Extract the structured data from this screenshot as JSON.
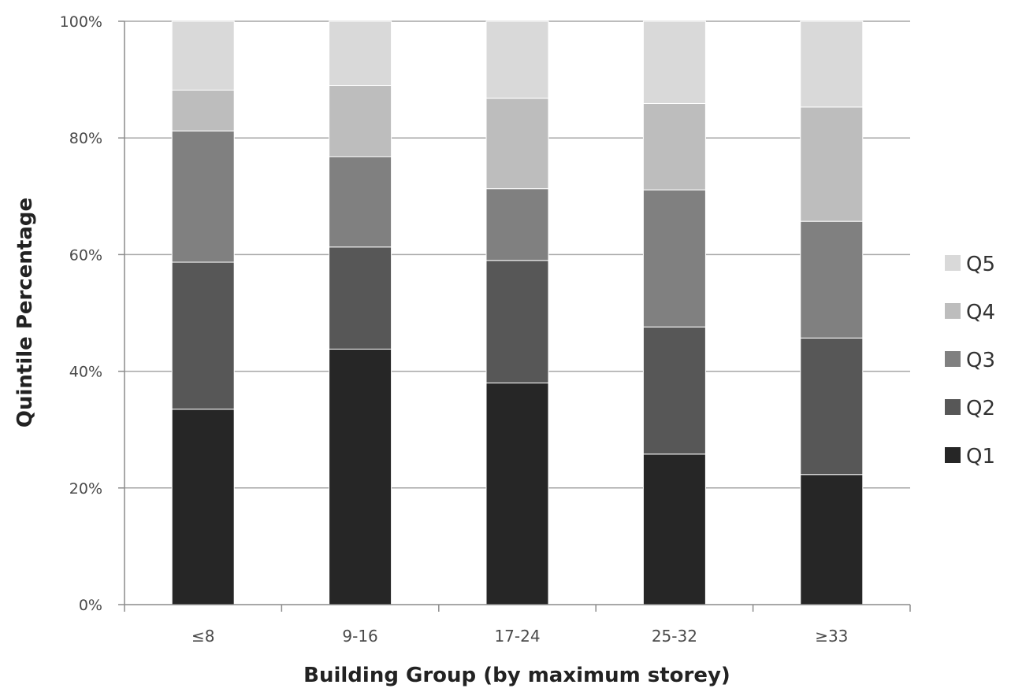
{
  "chart_data": {
    "type": "bar",
    "stacked": true,
    "categories": [
      "≤8",
      "9-16",
      "17-24",
      "25-32",
      "≥33"
    ],
    "series": [
      {
        "name": "Q1",
        "color": "#262626",
        "values": [
          33.5,
          43.8,
          38.0,
          25.8,
          22.3
        ]
      },
      {
        "name": "Q2",
        "color": "#575757",
        "values": [
          25.2,
          17.5,
          21.0,
          21.8,
          23.4
        ]
      },
      {
        "name": "Q3",
        "color": "#808080",
        "values": [
          22.5,
          15.5,
          12.3,
          23.5,
          20.0
        ]
      },
      {
        "name": "Q4",
        "color": "#bdbdbd",
        "values": [
          7.0,
          12.2,
          15.5,
          14.8,
          19.6
        ]
      },
      {
        "name": "Q5",
        "color": "#d9d9d9",
        "values": [
          11.8,
          11.0,
          13.2,
          14.1,
          14.7
        ]
      }
    ],
    "ylim": [
      0,
      100
    ],
    "yticks": [
      "0%",
      "20%",
      "40%",
      "60%",
      "80%",
      "100%"
    ],
    "ylabel": "Quintile Percentage",
    "xlabel": "Building Group (by maximum storey)",
    "grid": true,
    "legend_position": "right",
    "legend_order": [
      "Q5",
      "Q4",
      "Q3",
      "Q2",
      "Q1"
    ]
  }
}
